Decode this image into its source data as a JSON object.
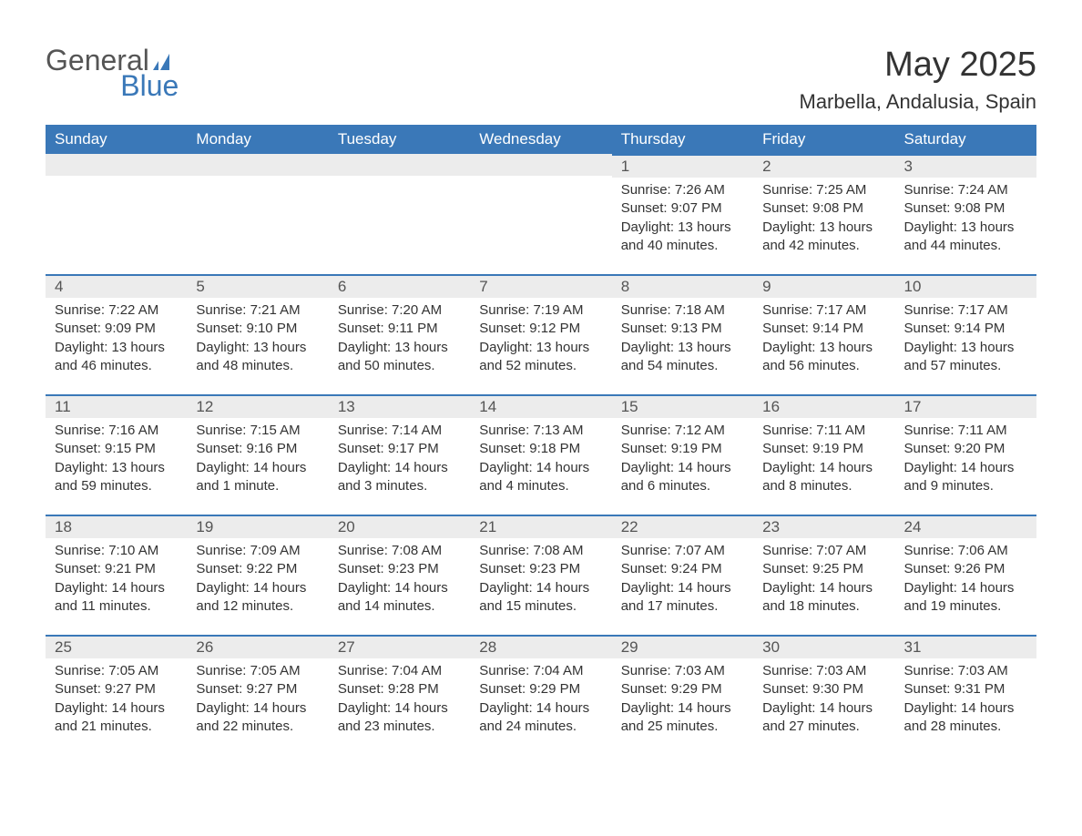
{
  "logo": {
    "part1": "General",
    "part2": "Blue"
  },
  "title": "May 2025",
  "location": "Marbella, Andalusia, Spain",
  "colors": {
    "header_bg": "#3a78b8",
    "header_text": "#ffffff",
    "day_bar_bg": "#ececec",
    "day_bar_border": "#3a78b8",
    "text": "#333333",
    "logo_blue": "#3a78b8",
    "logo_gray": "#555555",
    "page_bg": "#ffffff"
  },
  "weekdays": [
    "Sunday",
    "Monday",
    "Tuesday",
    "Wednesday",
    "Thursday",
    "Friday",
    "Saturday"
  ],
  "weeks": [
    [
      null,
      null,
      null,
      null,
      {
        "n": "1",
        "sunrise": "Sunrise: 7:26 AM",
        "sunset": "Sunset: 9:07 PM",
        "daylight": "Daylight: 13 hours and 40 minutes."
      },
      {
        "n": "2",
        "sunrise": "Sunrise: 7:25 AM",
        "sunset": "Sunset: 9:08 PM",
        "daylight": "Daylight: 13 hours and 42 minutes."
      },
      {
        "n": "3",
        "sunrise": "Sunrise: 7:24 AM",
        "sunset": "Sunset: 9:08 PM",
        "daylight": "Daylight: 13 hours and 44 minutes."
      }
    ],
    [
      {
        "n": "4",
        "sunrise": "Sunrise: 7:22 AM",
        "sunset": "Sunset: 9:09 PM",
        "daylight": "Daylight: 13 hours and 46 minutes."
      },
      {
        "n": "5",
        "sunrise": "Sunrise: 7:21 AM",
        "sunset": "Sunset: 9:10 PM",
        "daylight": "Daylight: 13 hours and 48 minutes."
      },
      {
        "n": "6",
        "sunrise": "Sunrise: 7:20 AM",
        "sunset": "Sunset: 9:11 PM",
        "daylight": "Daylight: 13 hours and 50 minutes."
      },
      {
        "n": "7",
        "sunrise": "Sunrise: 7:19 AM",
        "sunset": "Sunset: 9:12 PM",
        "daylight": "Daylight: 13 hours and 52 minutes."
      },
      {
        "n": "8",
        "sunrise": "Sunrise: 7:18 AM",
        "sunset": "Sunset: 9:13 PM",
        "daylight": "Daylight: 13 hours and 54 minutes."
      },
      {
        "n": "9",
        "sunrise": "Sunrise: 7:17 AM",
        "sunset": "Sunset: 9:14 PM",
        "daylight": "Daylight: 13 hours and 56 minutes."
      },
      {
        "n": "10",
        "sunrise": "Sunrise: 7:17 AM",
        "sunset": "Sunset: 9:14 PM",
        "daylight": "Daylight: 13 hours and 57 minutes."
      }
    ],
    [
      {
        "n": "11",
        "sunrise": "Sunrise: 7:16 AM",
        "sunset": "Sunset: 9:15 PM",
        "daylight": "Daylight: 13 hours and 59 minutes."
      },
      {
        "n": "12",
        "sunrise": "Sunrise: 7:15 AM",
        "sunset": "Sunset: 9:16 PM",
        "daylight": "Daylight: 14 hours and 1 minute."
      },
      {
        "n": "13",
        "sunrise": "Sunrise: 7:14 AM",
        "sunset": "Sunset: 9:17 PM",
        "daylight": "Daylight: 14 hours and 3 minutes."
      },
      {
        "n": "14",
        "sunrise": "Sunrise: 7:13 AM",
        "sunset": "Sunset: 9:18 PM",
        "daylight": "Daylight: 14 hours and 4 minutes."
      },
      {
        "n": "15",
        "sunrise": "Sunrise: 7:12 AM",
        "sunset": "Sunset: 9:19 PM",
        "daylight": "Daylight: 14 hours and 6 minutes."
      },
      {
        "n": "16",
        "sunrise": "Sunrise: 7:11 AM",
        "sunset": "Sunset: 9:19 PM",
        "daylight": "Daylight: 14 hours and 8 minutes."
      },
      {
        "n": "17",
        "sunrise": "Sunrise: 7:11 AM",
        "sunset": "Sunset: 9:20 PM",
        "daylight": "Daylight: 14 hours and 9 minutes."
      }
    ],
    [
      {
        "n": "18",
        "sunrise": "Sunrise: 7:10 AM",
        "sunset": "Sunset: 9:21 PM",
        "daylight": "Daylight: 14 hours and 11 minutes."
      },
      {
        "n": "19",
        "sunrise": "Sunrise: 7:09 AM",
        "sunset": "Sunset: 9:22 PM",
        "daylight": "Daylight: 14 hours and 12 minutes."
      },
      {
        "n": "20",
        "sunrise": "Sunrise: 7:08 AM",
        "sunset": "Sunset: 9:23 PM",
        "daylight": "Daylight: 14 hours and 14 minutes."
      },
      {
        "n": "21",
        "sunrise": "Sunrise: 7:08 AM",
        "sunset": "Sunset: 9:23 PM",
        "daylight": "Daylight: 14 hours and 15 minutes."
      },
      {
        "n": "22",
        "sunrise": "Sunrise: 7:07 AM",
        "sunset": "Sunset: 9:24 PM",
        "daylight": "Daylight: 14 hours and 17 minutes."
      },
      {
        "n": "23",
        "sunrise": "Sunrise: 7:07 AM",
        "sunset": "Sunset: 9:25 PM",
        "daylight": "Daylight: 14 hours and 18 minutes."
      },
      {
        "n": "24",
        "sunrise": "Sunrise: 7:06 AM",
        "sunset": "Sunset: 9:26 PM",
        "daylight": "Daylight: 14 hours and 19 minutes."
      }
    ],
    [
      {
        "n": "25",
        "sunrise": "Sunrise: 7:05 AM",
        "sunset": "Sunset: 9:27 PM",
        "daylight": "Daylight: 14 hours and 21 minutes."
      },
      {
        "n": "26",
        "sunrise": "Sunrise: 7:05 AM",
        "sunset": "Sunset: 9:27 PM",
        "daylight": "Daylight: 14 hours and 22 minutes."
      },
      {
        "n": "27",
        "sunrise": "Sunrise: 7:04 AM",
        "sunset": "Sunset: 9:28 PM",
        "daylight": "Daylight: 14 hours and 23 minutes."
      },
      {
        "n": "28",
        "sunrise": "Sunrise: 7:04 AM",
        "sunset": "Sunset: 9:29 PM",
        "daylight": "Daylight: 14 hours and 24 minutes."
      },
      {
        "n": "29",
        "sunrise": "Sunrise: 7:03 AM",
        "sunset": "Sunset: 9:29 PM",
        "daylight": "Daylight: 14 hours and 25 minutes."
      },
      {
        "n": "30",
        "sunrise": "Sunrise: 7:03 AM",
        "sunset": "Sunset: 9:30 PM",
        "daylight": "Daylight: 14 hours and 27 minutes."
      },
      {
        "n": "31",
        "sunrise": "Sunrise: 7:03 AM",
        "sunset": "Sunset: 9:31 PM",
        "daylight": "Daylight: 14 hours and 28 minutes."
      }
    ]
  ]
}
